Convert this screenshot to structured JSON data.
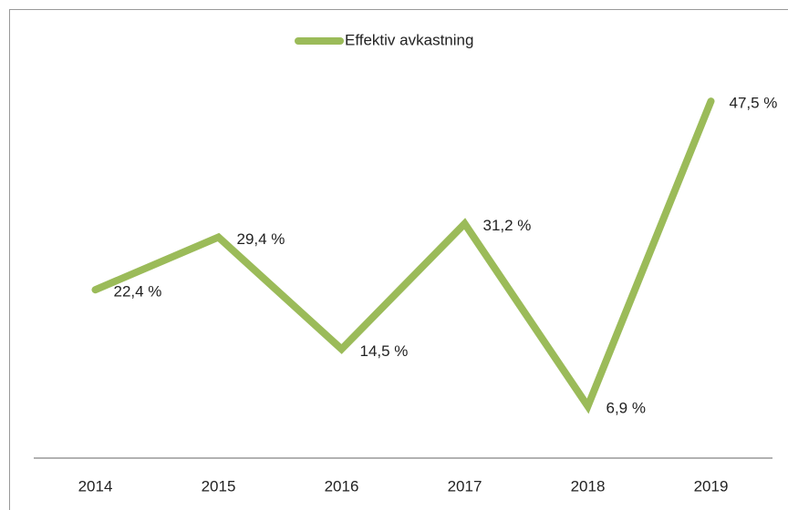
{
  "chart_data": {
    "type": "line",
    "categories": [
      "2014",
      "2015",
      "2016",
      "2017",
      "2018",
      "2019"
    ],
    "series": [
      {
        "name": "Effektiv avkastning",
        "color": "#9bbb59",
        "values": [
          22.4,
          29.4,
          14.5,
          31.2,
          6.9,
          47.5
        ],
        "value_labels": [
          "22,4 %",
          "29,4 %",
          "14,5 %",
          "31,2 %",
          "6,9 %",
          "47,5 %"
        ]
      }
    ],
    "ylim": [
      0,
      50
    ],
    "legend": "top"
  }
}
